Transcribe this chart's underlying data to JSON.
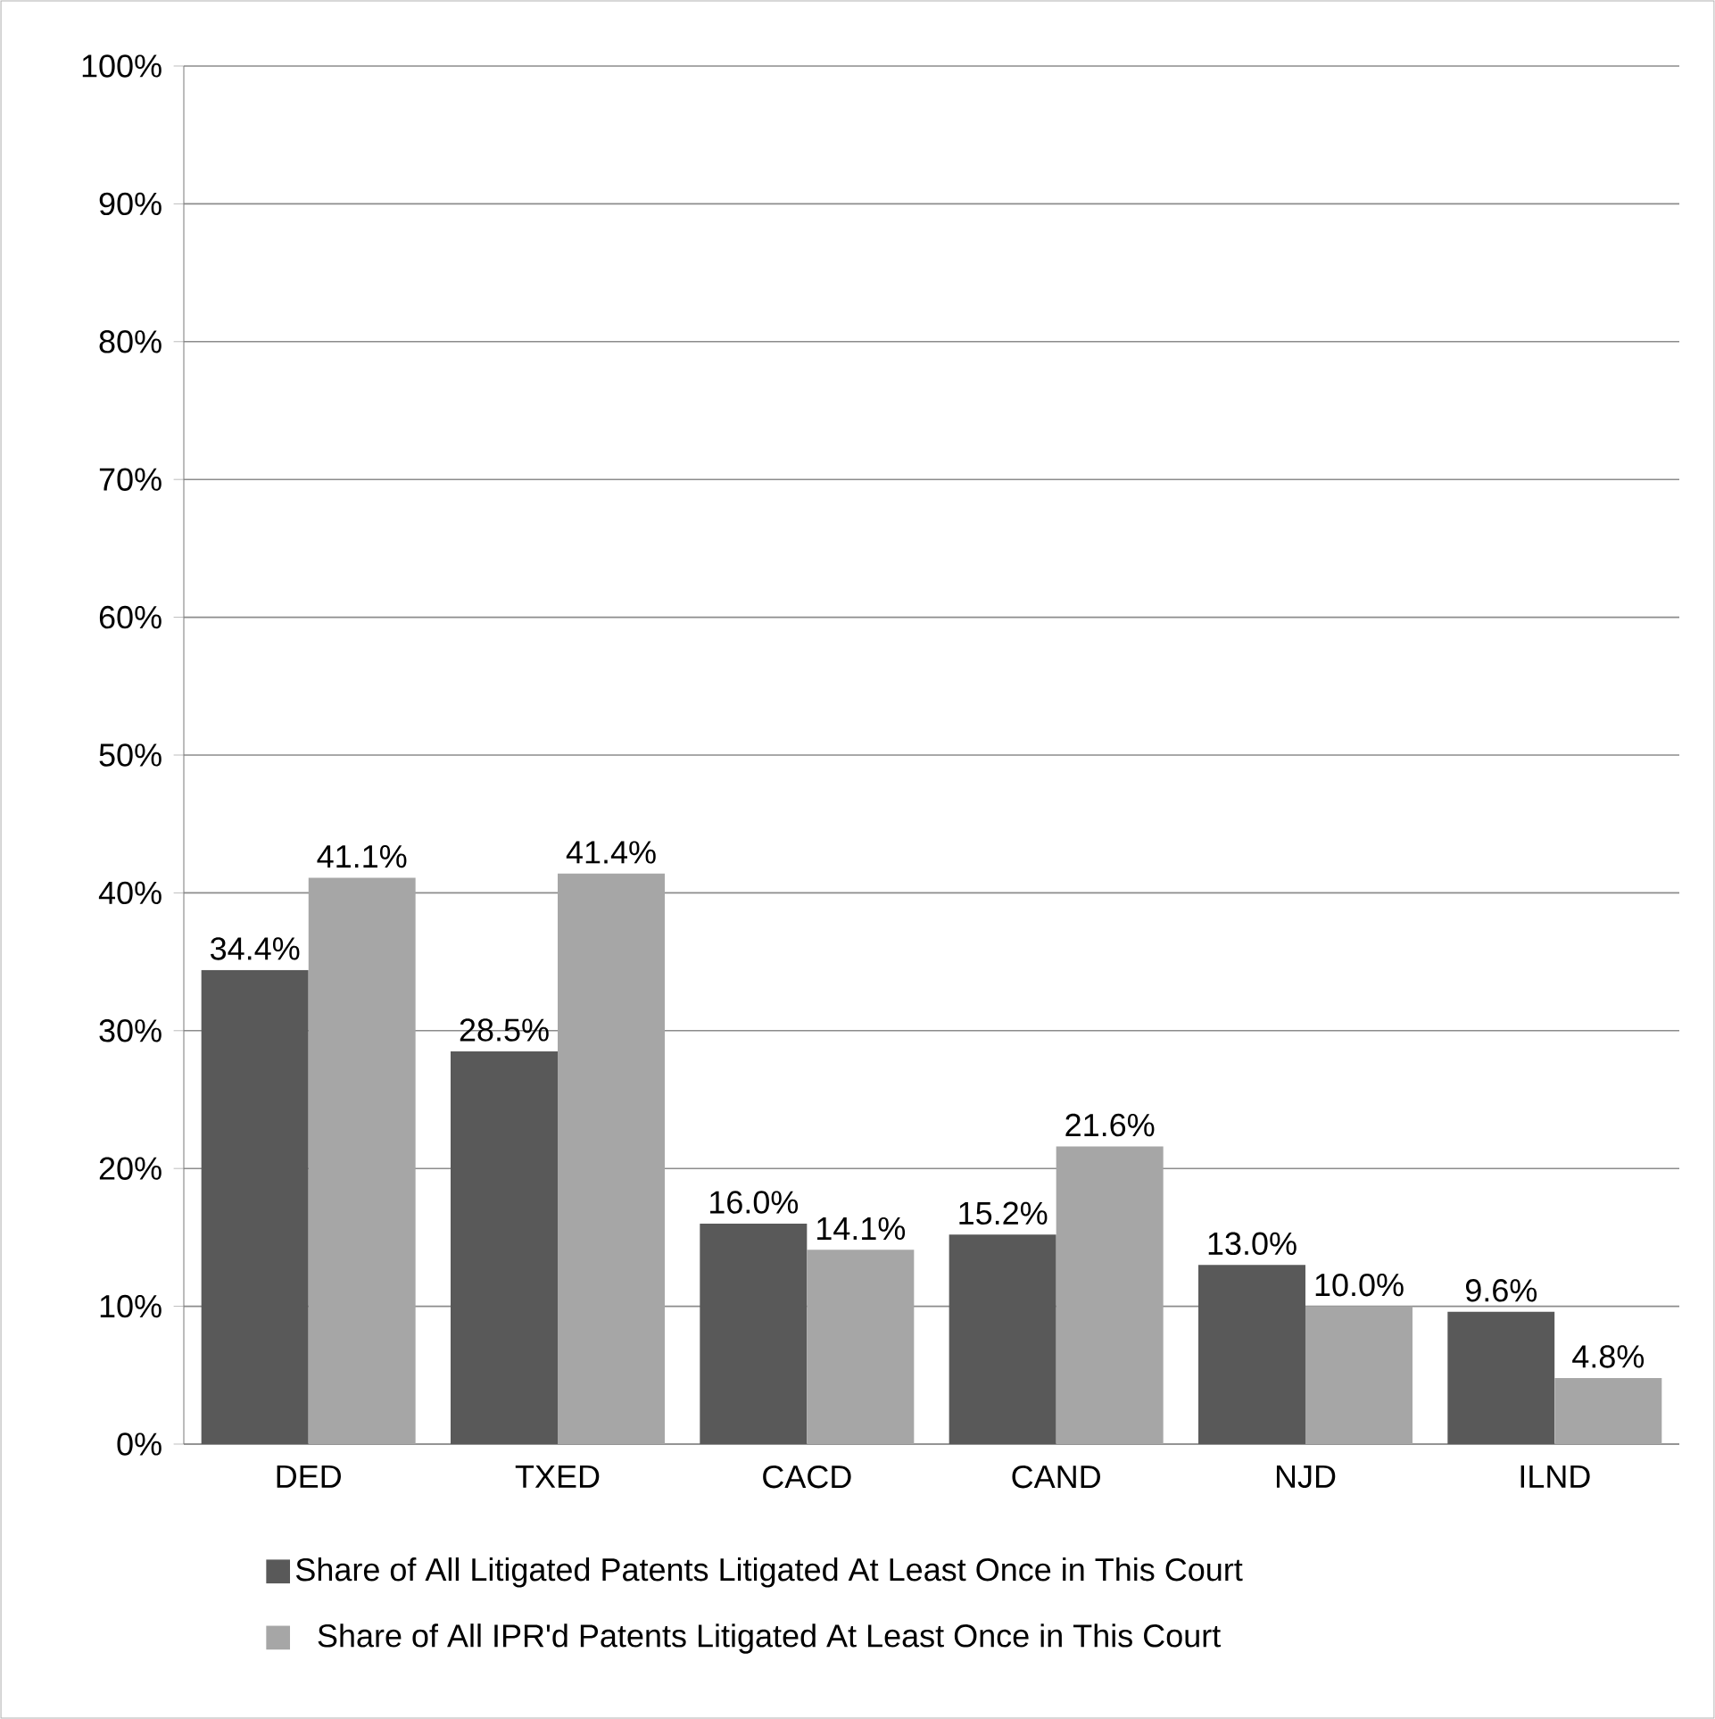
{
  "chart_data": {
    "type": "bar",
    "categories": [
      "DED",
      "TXED",
      "CACD",
      "CAND",
      "NJD",
      "ILND"
    ],
    "series": [
      {
        "name": "Share of All Litigated Patents Litigated At Least Once in This Court",
        "color": "#595959",
        "values": [
          34.4,
          28.5,
          16.0,
          15.2,
          13.0,
          9.6
        ],
        "value_labels": [
          "34.4%",
          "28.5%",
          "16.0%",
          "15.2%",
          "13.0%",
          "9.6%"
        ]
      },
      {
        "name": "Share of All IPR'd Patents Litigated At Least Once in This Court",
        "color": "#a6a6a6",
        "values": [
          41.1,
          41.4,
          14.1,
          21.6,
          10.0,
          4.8
        ],
        "value_labels": [
          "41.1%",
          "41.4%",
          "14.1%",
          "21.6%",
          "10.0%",
          "4.8%"
        ]
      }
    ],
    "ylim": [
      0,
      100
    ],
    "yticks": [
      {
        "value": 0,
        "label": "0%"
      },
      {
        "value": 10,
        "label": "10%"
      },
      {
        "value": 20,
        "label": "20%"
      },
      {
        "value": 30,
        "label": "30%"
      },
      {
        "value": 40,
        "label": "40%"
      },
      {
        "value": 50,
        "label": "50%"
      },
      {
        "value": 60,
        "label": "60%"
      },
      {
        "value": 70,
        "label": "70%"
      },
      {
        "value": 80,
        "label": "80%"
      },
      {
        "value": 90,
        "label": "90%"
      },
      {
        "value": 100,
        "label": "100%"
      }
    ],
    "grid": "y",
    "legend": "bottom"
  }
}
